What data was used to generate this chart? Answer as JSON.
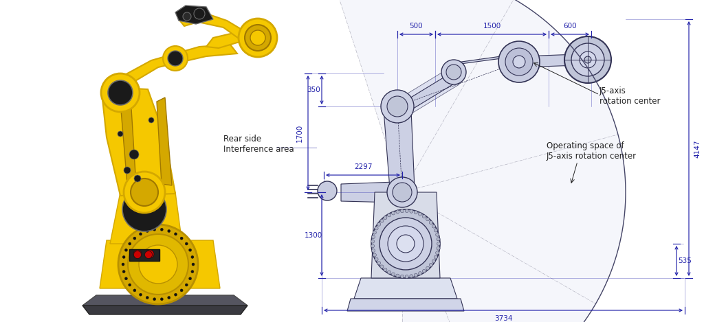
{
  "bg_color": "#ffffff",
  "dim_color": "#2222aa",
  "line_color": "#333355",
  "annotation_color": "#222222",
  "dimensions": {
    "top_500": "500",
    "top_1500": "1500",
    "top_600": "600",
    "left_350": "350",
    "left_1700": "1700",
    "left_1300": "1300",
    "left_2297": "2297",
    "right_4147": "4147",
    "right_535": "535",
    "bottom_3734": "3734"
  },
  "labels": {
    "rear_side": "Rear side\nInterference area",
    "j5_axis": "J5-axis\nrotation center",
    "operating_space": "Operating space of\nJ5-axis rotation center"
  },
  "arc_color": "#555566",
  "arc_fill": "#eef0f8"
}
